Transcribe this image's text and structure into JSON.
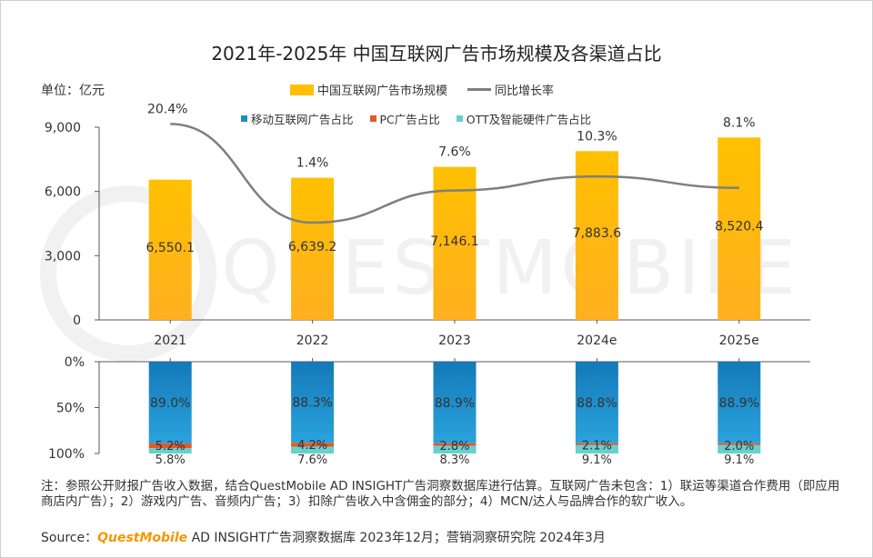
{
  "title": "2021年-2025年 中国互联网广告市场规模及各渠道占比",
  "unit_label": "单位：亿元",
  "legend_top": [
    {
      "name": "中国互联网广告市场规模",
      "color": "#ffc000"
    },
    {
      "name": "同比增长率",
      "color": "#7f7f7f"
    }
  ],
  "legend_bottom": [
    {
      "name": "移动互联网广告占比",
      "color": "#1b8ec9"
    },
    {
      "name": "PC广告占比",
      "color": "#e05a2b"
    },
    {
      "name": "OTT及智能硬件广告占比",
      "color": "#66d1cf"
    }
  ],
  "colors": {
    "bar_top": "#ffc000",
    "bar_bottom": "#ffb020",
    "line": "#7f7f7f",
    "mobile": "#1b8ec9",
    "pc": "#e05a2b",
    "ott": "#66d1cf",
    "axis": "#595959",
    "watermark": "#f1f1f1"
  },
  "watermark": "QUESTMOBILE",
  "chart_data": [
    {
      "type": "bar",
      "categories": [
        "2021",
        "2022",
        "2023",
        "2024e",
        "2025e"
      ],
      "series": [
        {
          "name": "中国互联网广告市场规模",
          "values": [
            6550.1,
            6639.2,
            7146.1,
            7883.6,
            8520.4
          ],
          "labels": [
            "6,550.1",
            "6,639.2",
            "7,146.1",
            "7,883.6",
            "8,520.4"
          ]
        },
        {
          "name": "同比增长率",
          "type": "line",
          "values": [
            20.4,
            1.4,
            7.6,
            10.3,
            8.1
          ],
          "labels": [
            "20.4%",
            "1.4%",
            "7.6%",
            "10.3%",
            "8.1%"
          ]
        }
      ],
      "ylim": [
        0,
        9000
      ],
      "yticks": [
        0,
        3000,
        6000,
        9000
      ],
      "ytick_labels": [
        "0",
        "3,000",
        "6,000",
        "9,000"
      ],
      "legend": "top-right"
    },
    {
      "type": "bar",
      "stacked": true,
      "categories": [
        "2021",
        "2022",
        "2023",
        "2024e",
        "2025e"
      ],
      "series": [
        {
          "name": "移动互联网广告占比",
          "values": [
            89.0,
            88.3,
            88.9,
            88.8,
            88.9
          ],
          "labels": [
            "89.0%",
            "88.3%",
            "88.9%",
            "88.8%",
            "88.9%"
          ]
        },
        {
          "name": "PC广告占比",
          "values": [
            5.2,
            4.2,
            2.8,
            2.1,
            2.0
          ],
          "labels": [
            "5.2%",
            "4.2%",
            "2.8%",
            "2.1%",
            "2.0%"
          ]
        },
        {
          "name": "OTT及智能硬件广告占比",
          "values": [
            5.8,
            7.6,
            8.3,
            9.1,
            9.1
          ],
          "labels": [
            "5.8%",
            "7.6%",
            "8.3%",
            "9.1%",
            "9.1%"
          ]
        }
      ],
      "ylim": [
        0,
        100
      ],
      "yticks": [
        0,
        50,
        100
      ],
      "ytick_labels": [
        "0%",
        "50%",
        "100%"
      ],
      "y_inverted": true
    }
  ],
  "notes": "注：参照公开财报广告收入数据，结合QuestMobile AD INSIGHT广告洞察数据库进行估算。互联网广告未包含：1）联运等渠道合作费用（即应用商店内广告）；2）游戏内广告、音频内广告；3）扣除广告收入中含佣金的部分；4）MCN/达人与品牌合作的软广收入。",
  "source": {
    "prefix": "Source：",
    "brand": "QuestMobile",
    "rest": "AD INSIGHT广告洞察数据库 2023年12月；营销洞察研究院 2024年3月"
  }
}
